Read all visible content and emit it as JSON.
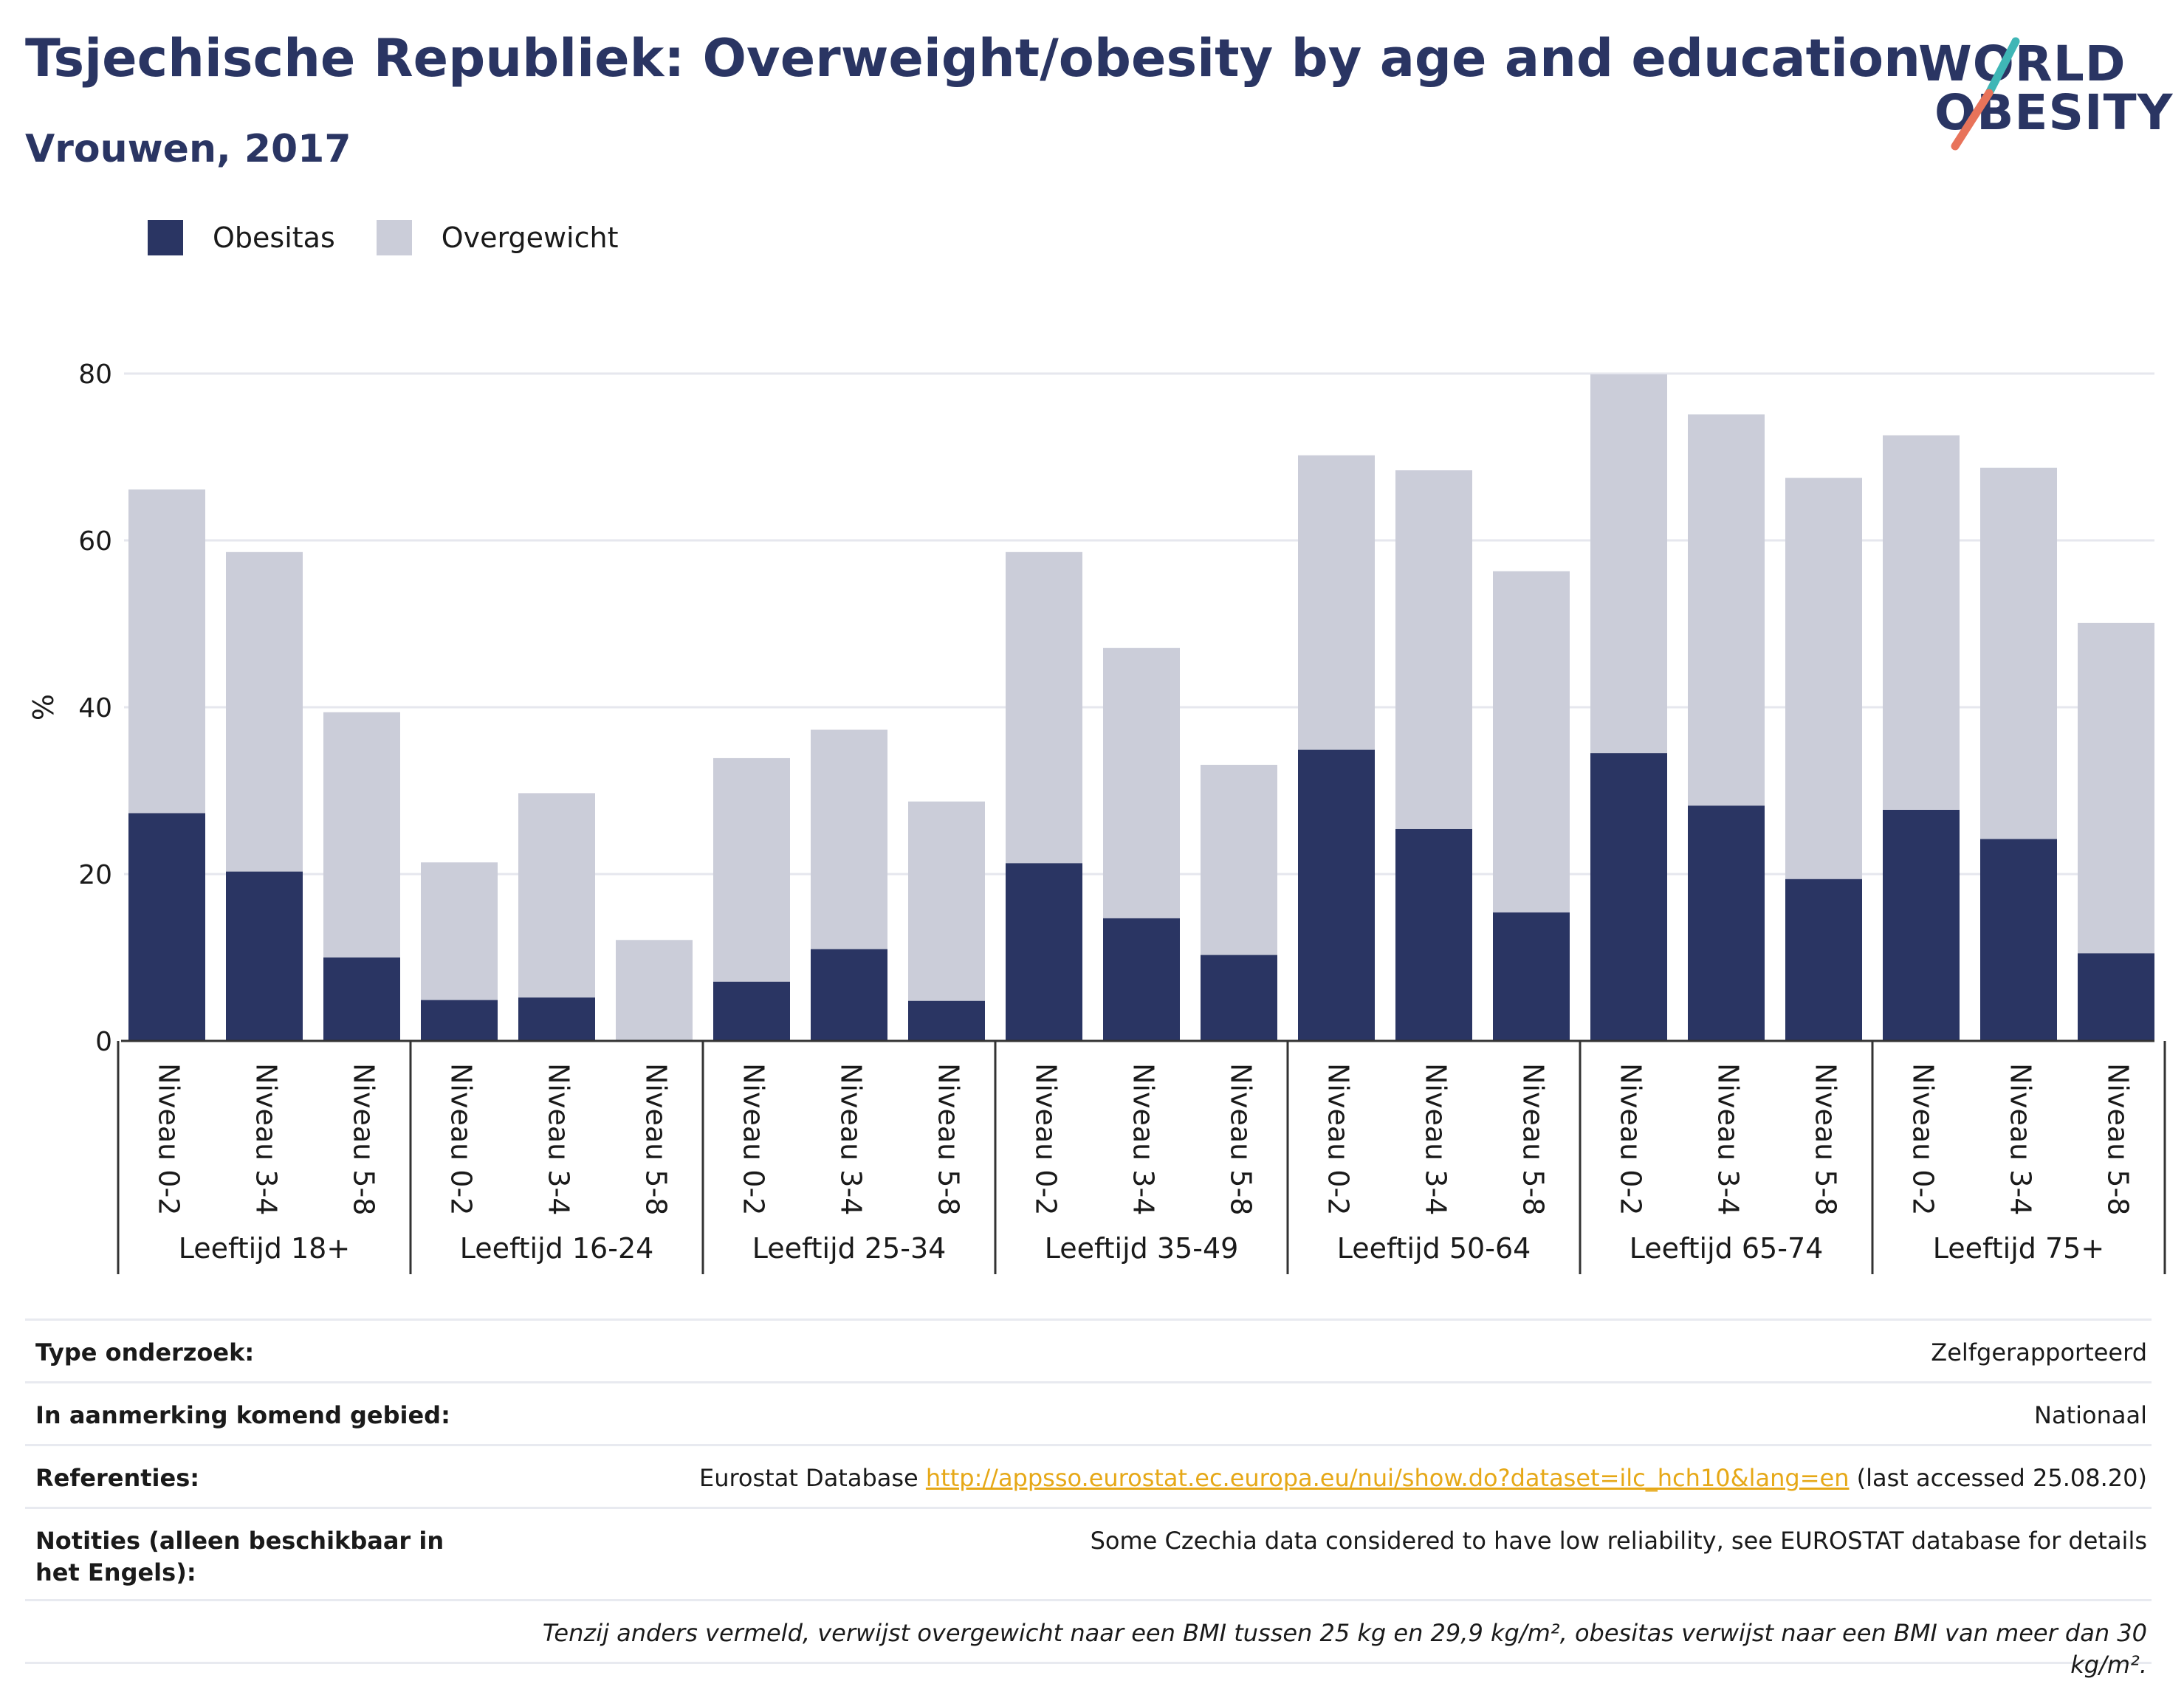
{
  "title": "Tsjechische Republiek: Overweight/obesity by age and education",
  "subtitle": "Vrouwen, 2017",
  "logo": {
    "line1": "WORLD",
    "line2": "OBESITY"
  },
  "colors": {
    "obesity": "#2a3563",
    "overweight": "#cbcdd9",
    "title": "#2a3563",
    "link": "#e6a817"
  },
  "legend": {
    "obesity": "Obesitas",
    "overweight": "Overgewicht"
  },
  "chart_data": {
    "type": "bar",
    "stacked": true,
    "ylabel": "%",
    "ylim": [
      0,
      80
    ],
    "yticks": [
      0,
      20,
      40,
      60,
      80
    ],
    "grid": true,
    "legend_position": "top-left",
    "groups": [
      {
        "label": "Leeftijd 18+",
        "categories": [
          "Niveau 0-2",
          "Niveau 3-4",
          "Niveau 5-8"
        ]
      },
      {
        "label": "Leeftijd 16-24",
        "categories": [
          "Niveau 0-2",
          "Niveau 3-4",
          "Niveau 5-8"
        ]
      },
      {
        "label": "Leeftijd 25-34",
        "categories": [
          "Niveau 0-2",
          "Niveau 3-4",
          "Niveau 5-8"
        ]
      },
      {
        "label": "Leeftijd 35-49",
        "categories": [
          "Niveau 0-2",
          "Niveau 3-4",
          "Niveau 5-8"
        ]
      },
      {
        "label": "Leeftijd 50-64",
        "categories": [
          "Niveau 0-2",
          "Niveau 3-4",
          "Niveau 5-8"
        ]
      },
      {
        "label": "Leeftijd 65-74",
        "categories": [
          "Niveau 0-2",
          "Niveau 3-4",
          "Niveau 5-8"
        ]
      },
      {
        "label": "Leeftijd 75+",
        "categories": [
          "Niveau 0-2",
          "Niveau 3-4",
          "Niveau 5-8"
        ]
      }
    ],
    "series": [
      {
        "name": "Obesitas",
        "values": [
          27.3,
          20.3,
          10.0,
          4.9,
          5.2,
          0,
          7.1,
          11.0,
          4.8,
          21.3,
          14.7,
          10.3,
          34.9,
          25.4,
          15.4,
          34.5,
          28.2,
          19.4,
          27.7,
          24.2,
          10.5
        ]
      },
      {
        "name": "Overgewicht",
        "values": [
          38.8,
          38.3,
          29.4,
          16.5,
          24.5,
          12.1,
          26.8,
          26.3,
          23.9,
          37.3,
          32.4,
          22.8,
          35.3,
          43.0,
          40.9,
          45.4,
          46.9,
          48.1,
          44.9,
          44.5,
          39.6
        ]
      }
    ]
  },
  "info": {
    "survey_label": "Type onderzoek:",
    "survey_value": "Zelfgerapporteerd",
    "area_label": "In aanmerking komend gebied:",
    "area_value": "Nationaal",
    "refs_label": "Referenties:",
    "refs_prefix": "Eurostat Database ",
    "refs_link": "http://appsso.eurostat.ec.europa.eu/nui/show.do?dataset=ilc_hch10&lang=en",
    "refs_suffix": " (last accessed 25.08.20)",
    "notes_label": "Notities (alleen beschikbaar in het Engels):",
    "notes_value": "Some Czechia data considered to have low reliability, see EUROSTAT database for details",
    "footnote": "Tenzij anders vermeld, verwijst overgewicht naar een BMI tussen 25 kg en 29,9 kg/m², obesitas verwijst naar een BMI van meer dan 30 kg/m²."
  }
}
